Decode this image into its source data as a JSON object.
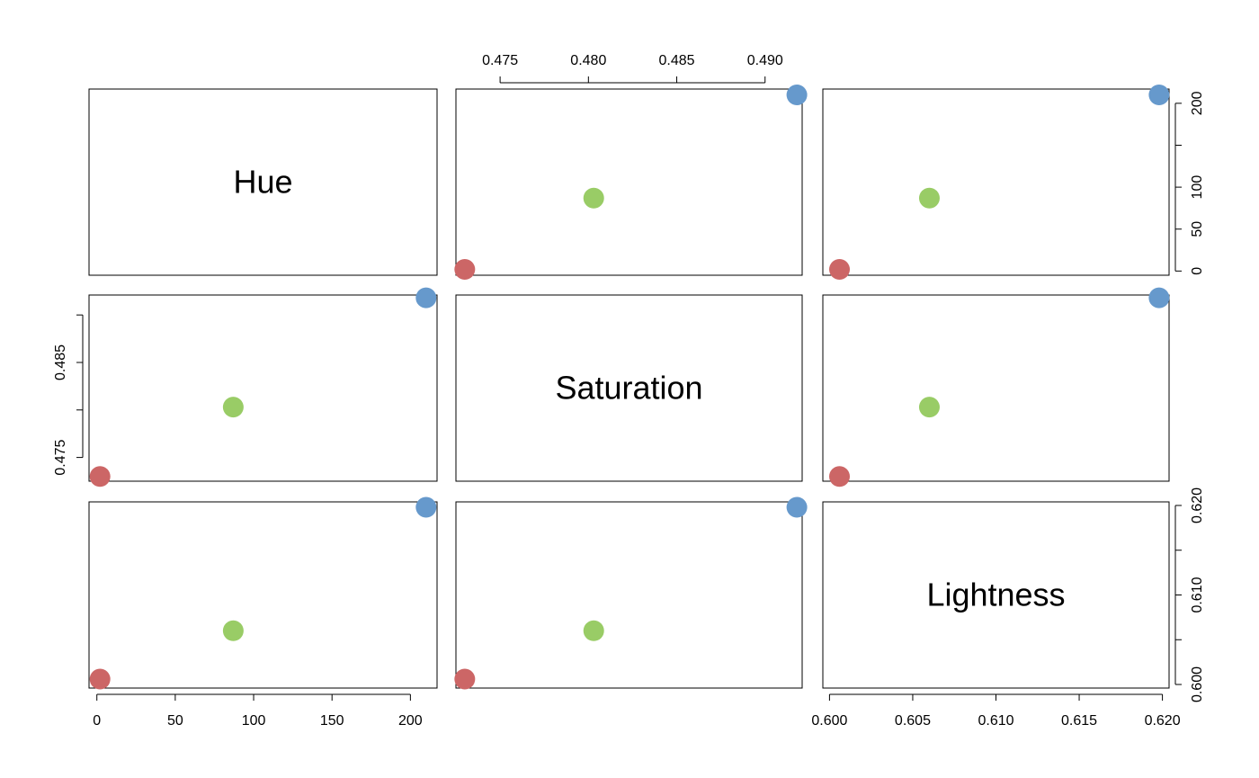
{
  "chart_data": {
    "type": "scatter",
    "kind": "pairs-scatterplot-matrix",
    "variables": [
      "Hue",
      "Saturation",
      "Lightness"
    ],
    "points": [
      {
        "Hue": 2,
        "Saturation": 0.473,
        "Lightness": 0.6006,
        "color": "#CC6666"
      },
      {
        "Hue": 87,
        "Saturation": 0.4803,
        "Lightness": 0.606,
        "color": "#99CC66"
      },
      {
        "Hue": 210,
        "Saturation": 0.4918,
        "Lightness": 0.6198,
        "color": "#6699CC"
      }
    ],
    "axes": {
      "Hue": {
        "lim": [
          -5,
          217
        ],
        "ticks": [
          0,
          50,
          100,
          150,
          200
        ],
        "tick_labels": [
          "0",
          "50",
          "100",
          "150",
          "200"
        ]
      },
      "Saturation": {
        "lim": [
          0.4725,
          0.4921
        ],
        "ticks": [
          0.475,
          0.48,
          0.485,
          0.49
        ],
        "tick_labels": [
          "0.475",
          "0.480",
          "0.485",
          "0.490"
        ]
      },
      "Lightness": {
        "lim": [
          0.5996,
          0.6204
        ],
        "ticks": [
          0.6,
          0.605,
          0.61,
          0.615,
          0.62
        ],
        "tick_labels": [
          "0.600",
          "0.605",
          "0.610",
          "0.615",
          "0.620"
        ]
      }
    },
    "left_axis_labels": [
      "0.475",
      "0.485"
    ],
    "grid": false,
    "legend": "none"
  }
}
